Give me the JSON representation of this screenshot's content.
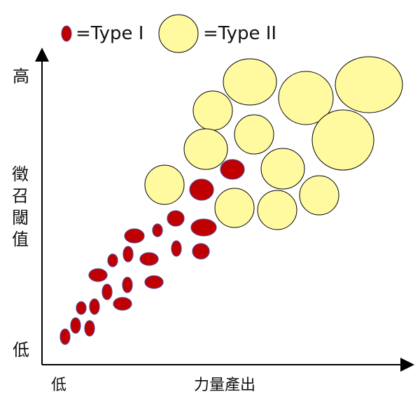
{
  "legend": {
    "type1_label": "=Type I",
    "type2_label": "=Type II"
  },
  "axes": {
    "y_high": "高",
    "y_low": "低",
    "y_title_chars": [
      "徵",
      "召",
      "閾",
      "值"
    ],
    "x_low": "低",
    "x_title": "力量產出"
  },
  "colors": {
    "type1_fill": "#c00000",
    "type1_stroke": "#5b3f8f",
    "type2_fill": "#fffaa0",
    "type2_stroke": "#000000",
    "axis": "#000000"
  }
}
